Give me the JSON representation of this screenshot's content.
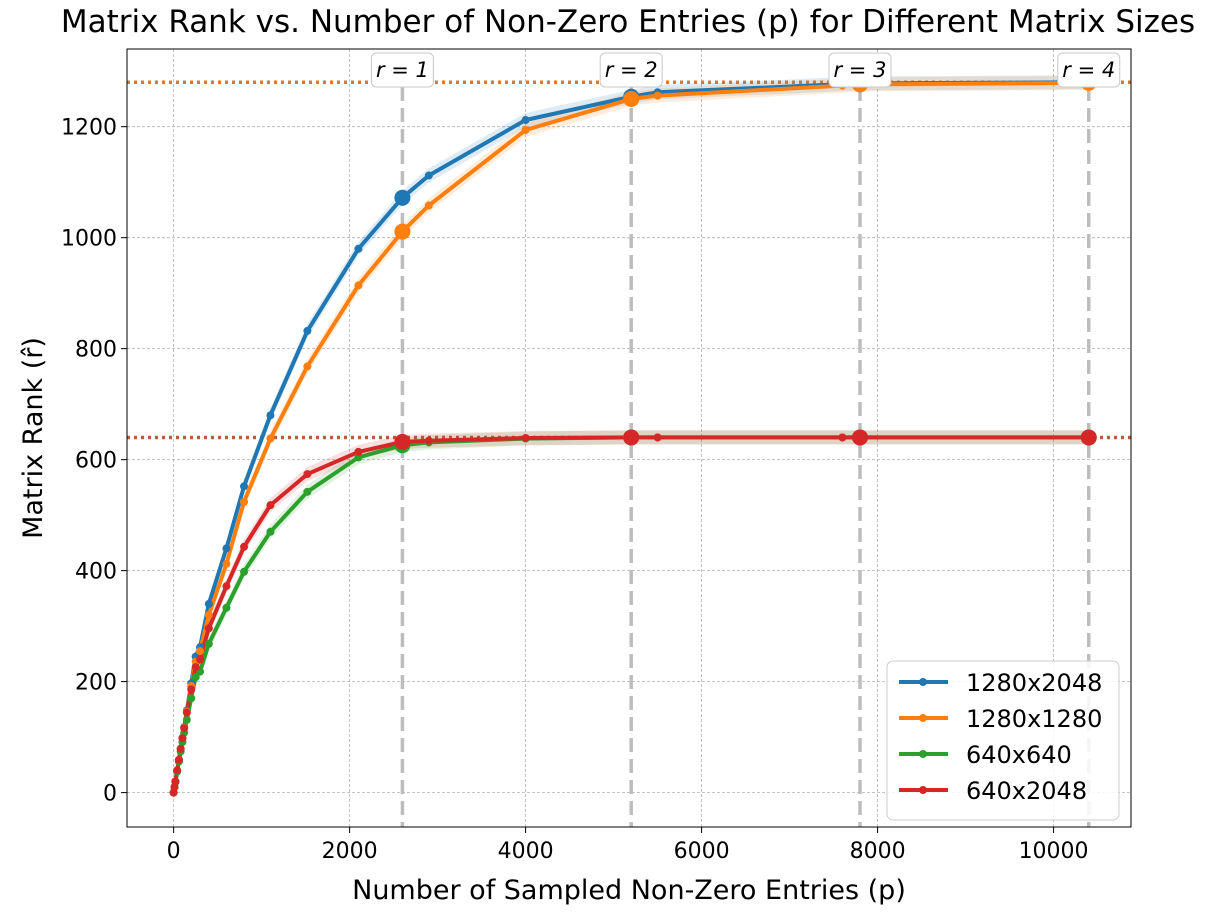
{
  "chart_data": {
    "type": "line",
    "title": "Matrix Rank vs. Number of Non-Zero Entries (p) for Different Matrix Sizes",
    "xlabel": "Number of Sampled Non-Zero Entries (p)",
    "ylabel": "Matrix Rank (r̂)",
    "xlim": [
      -530,
      10880
    ],
    "ylim": [
      -62,
      1340
    ],
    "xticks": [
      0,
      2000,
      4000,
      6000,
      8000,
      10000
    ],
    "yticks": [
      0,
      200,
      400,
      600,
      800,
      1000,
      1200
    ],
    "grid": true,
    "legend_position": "lower right",
    "horizontal_lines": [
      {
        "y": 1280,
        "color": "#d17b3a"
      },
      {
        "y": 640,
        "color": "#c0583a"
      }
    ],
    "vertical_markers": [
      {
        "x": 2600,
        "label": "r = 1"
      },
      {
        "x": 5200,
        "label": "r = 2"
      },
      {
        "x": 7800,
        "label": "r = 3"
      },
      {
        "x": 10400,
        "label": "r = 4"
      }
    ],
    "series": [
      {
        "name": "1280x2048",
        "color": "#1f77b4",
        "x": [
          0,
          10,
          20,
          40,
          60,
          80,
          100,
          120,
          150,
          200,
          250,
          300,
          400,
          600,
          800,
          1100,
          1520,
          2100,
          2600,
          2900,
          4000,
          5200,
          5500,
          7800,
          10400
        ],
        "y": [
          0,
          10,
          20,
          40,
          59,
          79,
          99,
          118,
          148,
          197,
          245,
          262,
          340,
          440,
          552,
          680,
          832,
          980,
          1072,
          1112,
          1212,
          1254,
          1262,
          1278,
          1280
        ],
        "highlight_x": [
          2600,
          5200,
          7800,
          10400
        ]
      },
      {
        "name": "1280x1280",
        "color": "#ff7f0e",
        "x": [
          0,
          10,
          20,
          40,
          60,
          80,
          100,
          120,
          150,
          200,
          250,
          300,
          400,
          600,
          800,
          1100,
          1520,
          2100,
          2600,
          2900,
          4000,
          5200,
          5500,
          7600,
          7800,
          10400
        ],
        "y": [
          0,
          10,
          20,
          40,
          59,
          79,
          98,
          117,
          146,
          192,
          236,
          255,
          320,
          412,
          524,
          638,
          768,
          914,
          1011,
          1058,
          1194,
          1250,
          1256,
          1274,
          1276,
          1279
        ],
        "highlight_x": [
          2600,
          5200,
          7800,
          10400
        ]
      },
      {
        "name": "640x640",
        "color": "#2ca02c",
        "x": [
          0,
          10,
          20,
          40,
          60,
          80,
          100,
          120,
          150,
          200,
          250,
          300,
          400,
          600,
          800,
          1100,
          1520,
          2100,
          2600,
          2900,
          4000,
          5200,
          5500,
          7600,
          7800,
          10400
        ],
        "y": [
          0,
          10,
          19,
          38,
          56,
          74,
          91,
          108,
          131,
          170,
          208,
          218,
          268,
          333,
          398,
          470,
          542,
          604,
          626,
          631,
          638,
          640,
          640,
          640,
          640,
          640
        ],
        "highlight_x": [
          2600,
          5200,
          7800,
          10400
        ]
      },
      {
        "name": "640x2048",
        "color": "#d62728",
        "x": [
          0,
          10,
          20,
          40,
          60,
          80,
          100,
          120,
          150,
          200,
          250,
          300,
          400,
          600,
          800,
          1100,
          1520,
          2100,
          2600,
          2900,
          4000,
          5200,
          5500,
          7600,
          7800,
          10400
        ],
        "y": [
          0,
          10,
          20,
          40,
          59,
          79,
          98,
          116,
          144,
          186,
          226,
          240,
          296,
          372,
          443,
          518,
          574,
          614,
          632,
          634,
          639,
          640,
          640,
          640,
          640,
          640
        ],
        "highlight_x": [
          2600,
          5200,
          7800,
          10400
        ]
      }
    ]
  }
}
